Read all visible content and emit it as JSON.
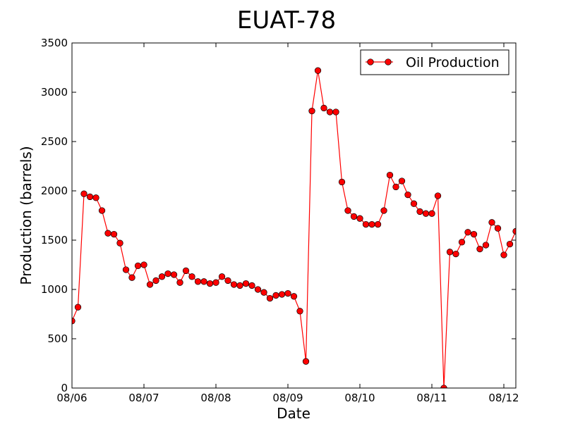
{
  "chart_data": {
    "type": "line",
    "title": "EUAT-78",
    "xlabel": "Date",
    "ylabel": "Production (barrels)",
    "ylim": [
      0,
      3500
    ],
    "y_ticks": [
      0,
      500,
      1000,
      1500,
      2000,
      2500,
      3000,
      3500
    ],
    "y_tick_labels": [
      "0",
      "500",
      "1000",
      "1500",
      "2000",
      "2500",
      "3000",
      "3500"
    ],
    "x_ticks": [
      "2006-08",
      "2007-08",
      "2008-08",
      "2009-08",
      "2010-08",
      "2011-08",
      "2012-08"
    ],
    "x_tick_labels": [
      "08/06",
      "08/07",
      "08/08",
      "08/09",
      "08/10",
      "08/11",
      "08/12"
    ],
    "xlim": [
      "2006-08",
      "2012-10"
    ],
    "grid": false,
    "legend_position": "top-right",
    "colors": {
      "line": "#ff0000",
      "marker_fill": "#ff0000",
      "marker_edge": "#000000"
    },
    "series": [
      {
        "name": "Oil Production",
        "x": [
          "2006-08",
          "2006-09",
          "2006-10",
          "2006-11",
          "2006-12",
          "2007-01",
          "2007-02",
          "2007-03",
          "2007-04",
          "2007-05",
          "2007-06",
          "2007-07",
          "2007-08",
          "2007-09",
          "2007-10",
          "2007-11",
          "2007-12",
          "2008-01",
          "2008-02",
          "2008-03",
          "2008-04",
          "2008-05",
          "2008-06",
          "2008-07",
          "2008-08",
          "2008-09",
          "2008-10",
          "2008-11",
          "2008-12",
          "2009-01",
          "2009-02",
          "2009-03",
          "2009-04",
          "2009-05",
          "2009-06",
          "2009-07",
          "2009-08",
          "2009-09",
          "2009-10",
          "2009-11",
          "2009-12",
          "2010-01",
          "2010-02",
          "2010-03",
          "2010-04",
          "2010-05",
          "2010-06",
          "2010-07",
          "2010-08",
          "2010-09",
          "2010-10",
          "2010-11",
          "2010-12",
          "2011-01",
          "2011-02",
          "2011-03",
          "2011-04",
          "2011-05",
          "2011-06",
          "2011-07",
          "2011-08",
          "2011-09",
          "2011-10",
          "2011-11",
          "2011-12",
          "2012-01",
          "2012-02",
          "2012-03",
          "2012-04",
          "2012-05",
          "2012-06",
          "2012-07",
          "2012-08",
          "2012-09",
          "2012-10"
        ],
        "y": [
          680,
          820,
          1970,
          1940,
          1930,
          1800,
          1570,
          1560,
          1470,
          1200,
          1120,
          1240,
          1250,
          1050,
          1090,
          1130,
          1160,
          1150,
          1070,
          1190,
          1130,
          1080,
          1080,
          1060,
          1070,
          1130,
          1090,
          1050,
          1040,
          1060,
          1040,
          1000,
          970,
          910,
          940,
          950,
          960,
          930,
          780,
          270,
          2810,
          3220,
          2840,
          2800,
          2800,
          2090,
          1800,
          1740,
          1720,
          1660,
          1660,
          1660,
          1800,
          2160,
          2040,
          2100,
          1960,
          1870,
          1790,
          1770,
          1770,
          1950,
          0,
          1380,
          1360,
          1480,
          1580,
          1560,
          1410,
          1450,
          1680,
          1620,
          1350,
          1460,
          1590
        ]
      }
    ]
  }
}
